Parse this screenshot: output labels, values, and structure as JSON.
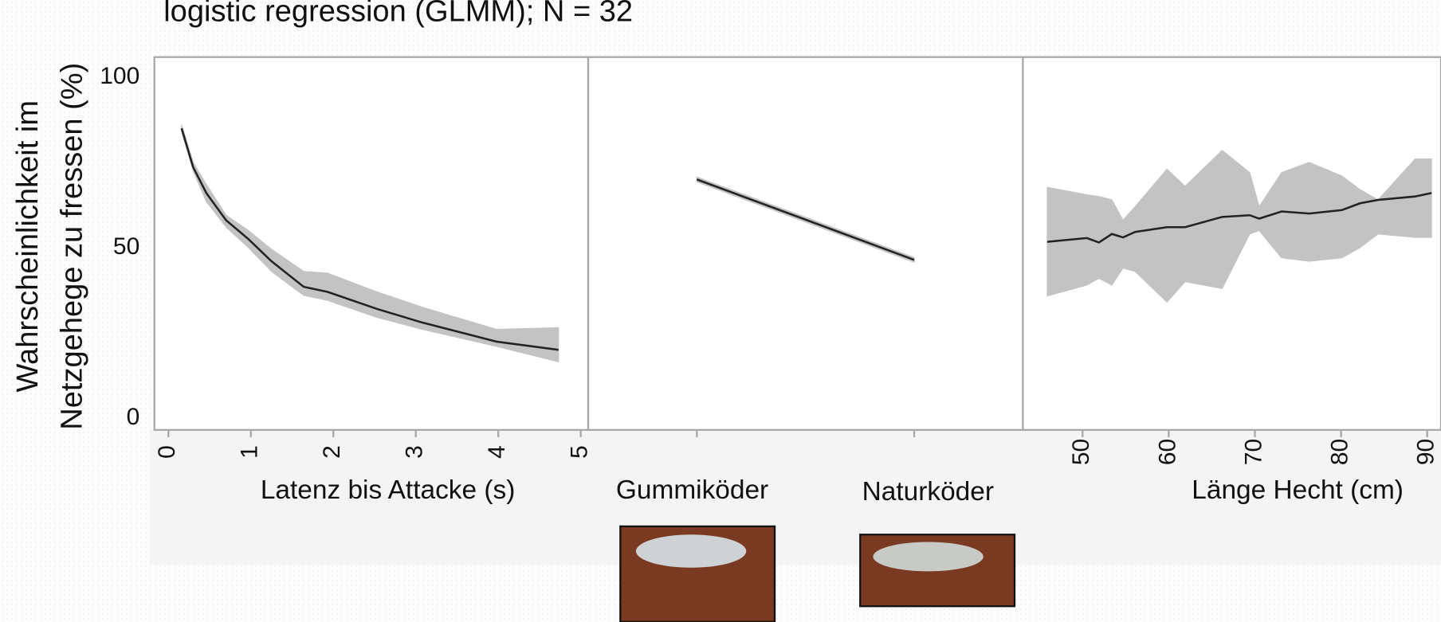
{
  "chart_data": [
    {
      "type": "line",
      "title": "logistic regression (GLMM); N = 32",
      "ylabel": [
        "Wahrscheinlichkeit im",
        "Netzgehege zu fressen (%)"
      ],
      "xlabel": "Latenz bis Attacke (s)",
      "x": [
        0.16,
        0.3,
        0.46,
        0.7,
        0.97,
        1.25,
        1.64,
        1.93,
        2.53,
        3.08,
        3.98,
        4.73
      ],
      "values": [
        85,
        73.6,
        66,
        58,
        52.5,
        46,
        38.5,
        37,
        32,
        28,
        22.4,
        20
      ],
      "lower": [
        84,
        72.5,
        63.5,
        56,
        50,
        43,
        36,
        34.5,
        29.5,
        26,
        21,
        16.5
      ],
      "upper": [
        86,
        75,
        68.5,
        59.5,
        55,
        49.5,
        43,
        42.5,
        37,
        32.5,
        26,
        26.5
      ],
      "xlim": [
        -0.17,
        5.09
      ],
      "xticks": [
        0,
        1,
        2,
        3,
        4,
        5
      ],
      "ylim": [
        -3.5,
        105.9
      ],
      "yticks": [
        0,
        50,
        100
      ],
      "color": "#222222",
      "band_color": "#c3c3c3"
    },
    {
      "type": "line",
      "categories": [
        "Gummiköder",
        "Naturköder"
      ],
      "values": [
        70,
        46.4
      ],
      "lower": [
        69.3,
        45.7
      ],
      "upper": [
        70.7,
        47.1
      ],
      "ylim": [
        -3.5,
        105.9
      ],
      "color": "#222222",
      "band_color": "#c3c3c3"
    },
    {
      "type": "line",
      "xlabel": "Länge Hecht (cm)",
      "x": [
        45.9,
        50.5,
        51.9,
        53.4,
        54.7,
        56.1,
        59.8,
        61.9,
        66.2,
        69.4,
        70.5,
        73.1,
        76.3,
        80.1,
        82.2,
        84.3,
        88.6,
        90.5
      ],
      "values": [
        51.7,
        52.8,
        51.5,
        54,
        53,
        54.6,
        56,
        56,
        59,
        59.5,
        58.5,
        60.6,
        60,
        61,
        63,
        64,
        65,
        66
      ],
      "lower": [
        35.8,
        39,
        41,
        39,
        44,
        43,
        34,
        40,
        38,
        54,
        55,
        47,
        46,
        47,
        50,
        54,
        53,
        53
      ],
      "upper": [
        67.7,
        65.5,
        65,
        64,
        58,
        62,
        73,
        68,
        78.5,
        72,
        62,
        72,
        75,
        71,
        67,
        64,
        76,
        76
      ],
      "xlim": [
        43.07,
        91.6
      ],
      "xticks": [
        50,
        60,
        70,
        80,
        90
      ],
      "ylim": [
        -3.5,
        105.9
      ],
      "color": "#222222",
      "band_color": "#c3c3c3"
    }
  ]
}
